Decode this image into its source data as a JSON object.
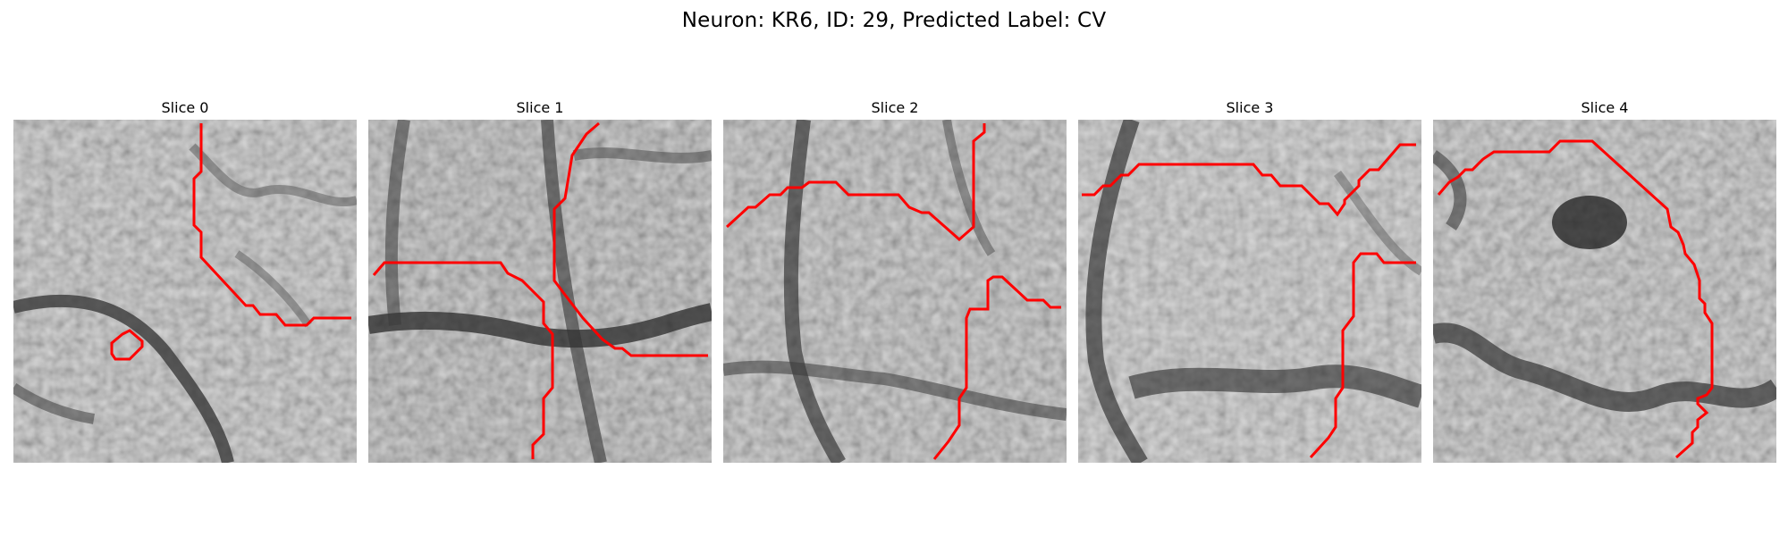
{
  "figure": {
    "title": "Neuron: KR6, ID: 29, Predicted Label: CV"
  },
  "panels": [
    {
      "title": "Slice 0",
      "contour_color": "#ff0000"
    },
    {
      "title": "Slice 1",
      "contour_color": "#ff0000"
    },
    {
      "title": "Slice 2",
      "contour_color": "#ff0000"
    },
    {
      "title": "Slice 3",
      "contour_color": "#ff0000"
    },
    {
      "title": "Slice 4",
      "contour_color": "#ff0000"
    }
  ]
}
